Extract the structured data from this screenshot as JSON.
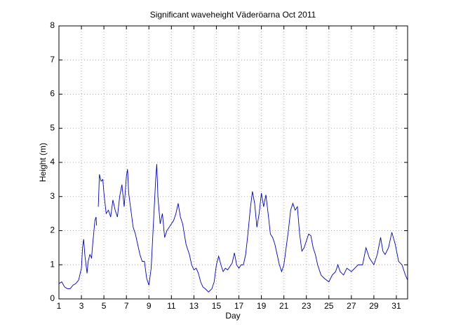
{
  "chart_data": {
    "type": "line",
    "title": "Significant waveheight Väderöarna Oct 2011",
    "xlabel": "Day",
    "ylabel": "Height (m)",
    "color": "#0000cc",
    "grid": true,
    "xlim": [
      1,
      32
    ],
    "xticks": [
      1,
      3,
      5,
      7,
      9,
      11,
      13,
      15,
      17,
      19,
      21,
      23,
      25,
      27,
      29,
      31
    ],
    "ylim": [
      0,
      8
    ],
    "yticks": [
      0,
      1,
      2,
      3,
      4,
      5,
      6,
      7,
      8
    ],
    "x": [
      1.0,
      1.25,
      1.5,
      1.75,
      2.0,
      2.25,
      2.5,
      2.75,
      3.0,
      3.1,
      3.2,
      3.3,
      3.5,
      3.6,
      3.75,
      3.9,
      4.0,
      4.2,
      4.3,
      4.35,
      4.4,
      4.5,
      4.6,
      4.75,
      4.9,
      5.0,
      5.2,
      5.4,
      5.6,
      5.8,
      6.0,
      6.2,
      6.4,
      6.6,
      6.8,
      7.0,
      7.1,
      7.2,
      7.4,
      7.6,
      7.8,
      8.0,
      8.2,
      8.4,
      8.6,
      8.8,
      9.0,
      9.2,
      9.4,
      9.6,
      9.7,
      9.8,
      10.0,
      10.2,
      10.4,
      10.6,
      10.8,
      11.0,
      11.2,
      11.4,
      11.6,
      11.8,
      12.0,
      12.3,
      12.6,
      12.8,
      13.0,
      13.2,
      13.4,
      13.6,
      13.8,
      14.0,
      14.3,
      14.6,
      14.8,
      15.0,
      15.2,
      15.4,
      15.6,
      15.8,
      16.0,
      16.2,
      16.4,
      16.6,
      16.8,
      17.0,
      17.2,
      17.4,
      17.6,
      17.8,
      18.0,
      18.2,
      18.4,
      18.6,
      18.8,
      19.0,
      19.2,
      19.4,
      19.6,
      19.8,
      20.0,
      20.2,
      20.4,
      20.6,
      20.8,
      21.0,
      21.2,
      21.4,
      21.6,
      21.8,
      22.0,
      22.2,
      22.4,
      22.6,
      22.8,
      23.0,
      23.2,
      23.4,
      23.6,
      23.8,
      24.0,
      24.3,
      24.6,
      25.0,
      25.3,
      25.6,
      25.8,
      26.0,
      26.3,
      26.6,
      27.0,
      27.3,
      27.6,
      28.0,
      28.3,
      28.6,
      29.0,
      29.3,
      29.6,
      29.8,
      30.0,
      30.3,
      30.6,
      30.9,
      31.2,
      31.5,
      31.8,
      32.0
    ],
    "values": [
      0.45,
      0.5,
      0.35,
      0.3,
      0.3,
      0.4,
      0.45,
      0.55,
      0.9,
      1.5,
      1.75,
      1.3,
      0.75,
      1.1,
      1.3,
      1.2,
      1.6,
      2.3,
      2.4,
      2.15,
      null,
      2.7,
      3.65,
      3.45,
      3.5,
      3.1,
      2.5,
      2.6,
      2.4,
      2.9,
      2.6,
      2.4,
      3.0,
      3.35,
      2.7,
      3.6,
      3.8,
      3.1,
      2.6,
      2.1,
      1.9,
      1.6,
      1.3,
      1.1,
      1.1,
      0.6,
      0.4,
      0.9,
      2.2,
      3.5,
      3.95,
      3.0,
      2.2,
      2.5,
      1.8,
      2.0,
      2.1,
      2.2,
      2.3,
      2.5,
      2.8,
      2.4,
      2.2,
      1.6,
      1.3,
      1.0,
      0.85,
      0.9,
      0.75,
      0.5,
      0.35,
      0.3,
      0.2,
      0.3,
      0.5,
      1.0,
      1.25,
      1.0,
      0.8,
      0.9,
      0.85,
      0.95,
      1.05,
      1.35,
      1.0,
      0.9,
      1.0,
      1.0,
      1.3,
      1.9,
      2.6,
      3.15,
      2.8,
      2.1,
      2.5,
      3.1,
      2.7,
      3.05,
      2.5,
      1.9,
      1.8,
      1.6,
      1.3,
      1.0,
      0.8,
      1.0,
      1.5,
      2.0,
      2.6,
      2.8,
      2.6,
      2.7,
      1.9,
      1.4,
      1.5,
      1.7,
      1.9,
      1.85,
      1.5,
      1.3,
      1.0,
      0.7,
      0.6,
      0.5,
      0.7,
      0.8,
      1.0,
      0.8,
      0.7,
      0.9,
      0.8,
      0.9,
      1.0,
      1.0,
      1.5,
      1.2,
      1.0,
      1.3,
      1.8,
      1.4,
      1.3,
      1.5,
      1.95,
      1.6,
      1.1,
      1.0,
      0.7,
      0.55
    ]
  }
}
